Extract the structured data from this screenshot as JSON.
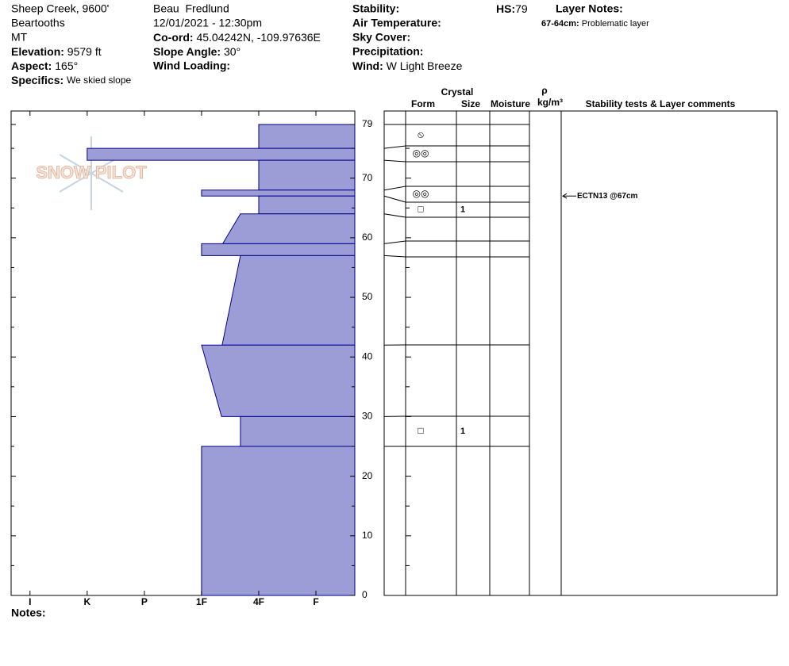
{
  "header": {
    "location": "Sheep Creek, 9600'",
    "range": "Beartooths",
    "state": "MT",
    "elevation": {
      "label": "Elevation:",
      "value": "9579 ft"
    },
    "aspect": {
      "label": "Aspect:",
      "value": "165°"
    },
    "specifics": {
      "label": "Specifics:",
      "value": "We skied slope"
    },
    "observer": "Beau  Fredlund",
    "datetime": "12/01/2021 - 12:30pm",
    "coord": {
      "label": "Co-ord:",
      "value": "45.04242N, -109.97636E"
    },
    "slope_angle": {
      "label": "Slope Angle:",
      "value": "30°"
    },
    "wind_loading": {
      "label": "Wind Loading:"
    },
    "stability": {
      "label": "Stability:"
    },
    "air_temperature": {
      "label": "Air Temperature:"
    },
    "sky_cover": {
      "label": "Sky Cover:"
    },
    "precipitation": {
      "label": "Precipitation:"
    },
    "wind": {
      "label": "Wind:",
      "value": "W Light Breeze"
    },
    "hs": {
      "label": "HS:",
      "value": 79
    },
    "layer_notes": {
      "label": "Layer Notes:",
      "items": [
        {
          "depth": "67-64cm:",
          "text": "Problematic layer"
        }
      ]
    }
  },
  "logo": "SNOW PILOT",
  "notes_label": "Notes:",
  "table_headers": {
    "crystal": "Crystal",
    "form": "Form",
    "size": "Size",
    "moisture": "Moisture",
    "rho": "ρ",
    "density": "kg/m³",
    "comments": "Stability tests & Layer comments"
  },
  "chart_data": {
    "type": "snow-profile",
    "color": "#9c9cd6",
    "edge_color": "#00008b",
    "xlim": [
      6.33,
      0.32
    ],
    "xticks": [
      {
        "value": 6,
        "label": "I"
      },
      {
        "value": 5,
        "label": "K"
      },
      {
        "value": 4,
        "label": "P"
      },
      {
        "value": 3,
        "label": "1F"
      },
      {
        "value": 2,
        "label": "4F"
      },
      {
        "value": 1,
        "label": "F"
      }
    ],
    "ylim": [
      0,
      79
    ],
    "yticks": [
      0,
      10,
      20,
      30,
      40,
      50,
      60,
      70,
      79
    ],
    "minor_yticks": [
      5,
      15,
      25,
      35,
      45,
      55,
      65,
      75
    ],
    "layers": [
      {
        "top": 79,
        "bottom": 75,
        "hardness_top": 2,
        "hardness_bottom": 2,
        "form": "⦸"
      },
      {
        "top": 75,
        "bottom": 73,
        "hardness_top": 5,
        "hardness_bottom": 5,
        "form": "◎◎"
      },
      {
        "top": 73,
        "bottom": 68,
        "hardness_top": 2,
        "hardness_bottom": 2
      },
      {
        "top": 68,
        "bottom": 67,
        "hardness_top": 3,
        "hardness_bottom": 3,
        "form": "◎◎"
      },
      {
        "top": 67,
        "bottom": 64,
        "hardness_top": 2,
        "hardness_bottom": 2,
        "form": "□",
        "size": 1
      },
      {
        "top": 64,
        "bottom": 59,
        "hardness_top": 2.32,
        "hardness_bottom": 2.63
      },
      {
        "top": 59,
        "bottom": 57,
        "hardness_top": 3,
        "hardness_bottom": 3
      },
      {
        "top": 57,
        "bottom": 42,
        "hardness_top": 2.32,
        "hardness_bottom": 2.64
      },
      {
        "top": 42,
        "bottom": 30,
        "hardness_top": 3,
        "hardness_bottom": 2.65
      },
      {
        "top": 30,
        "bottom": 25,
        "hardness_top": 2.32,
        "hardness_bottom": 2.32,
        "form": "□",
        "size": 1
      },
      {
        "top": 25,
        "bottom": 0,
        "hardness_top": 3,
        "hardness_bottom": 3
      }
    ],
    "stability_tests": [
      {
        "label": "ECTN13 @67cm",
        "depth": 67
      }
    ]
  }
}
